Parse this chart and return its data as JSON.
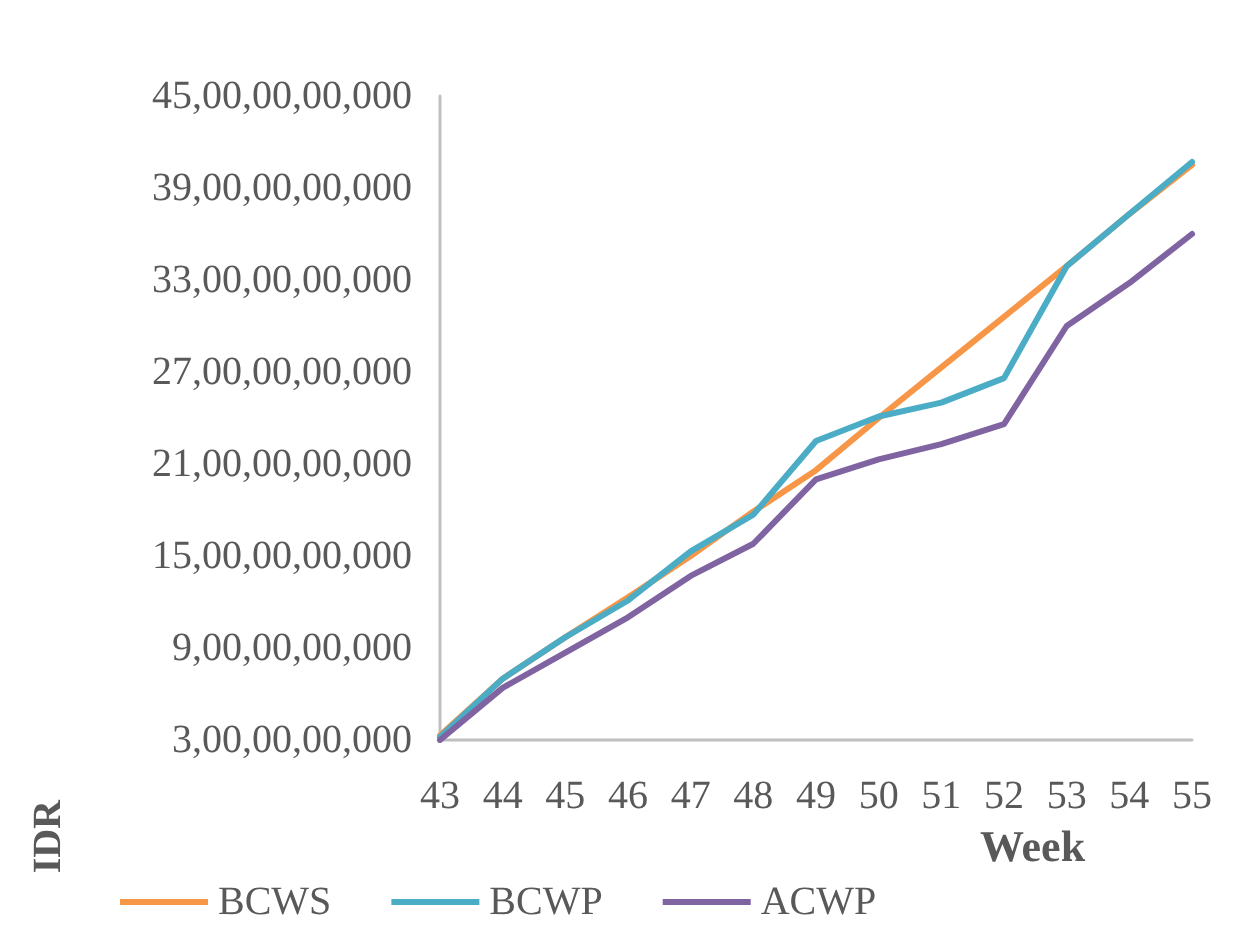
{
  "chart_data": {
    "type": "line",
    "xlabel": "Week",
    "ylabel": "IDR",
    "categories": [
      "43",
      "44",
      "45",
      "46",
      "47",
      "48",
      "49",
      "50",
      "51",
      "52",
      "53",
      "54",
      "55"
    ],
    "series": [
      {
        "name": "BCWS",
        "color": "#f79646",
        "values": [
          3300000000,
          7000000000,
          9700000000,
          12300000000,
          15000000000,
          17900000000,
          20600000000,
          24000000000,
          27300000000,
          30600000000,
          33900000000,
          37300000000,
          40500000000
        ]
      },
      {
        "name": "BCWP",
        "color": "#4bacc6",
        "values": [
          3200000000,
          7000000000,
          9700000000,
          12100000000,
          15300000000,
          17700000000,
          22500000000,
          24100000000,
          25000000000,
          26600000000,
          33900000000,
          37300000000,
          40700000000
        ]
      },
      {
        "name": "ACWP",
        "color": "#8064a2",
        "values": [
          3000000000,
          6400000000,
          8700000000,
          11000000000,
          13700000000,
          15800000000,
          20000000000,
          21300000000,
          22300000000,
          23600000000,
          30000000000,
          32800000000,
          36000000000
        ]
      }
    ],
    "ylim": [
      3000000000,
      45000000000
    ],
    "yticks": [
      {
        "value": 3000000000,
        "label": "3,00,00,00,000"
      },
      {
        "value": 9000000000,
        "label": "9,00,00,00,000"
      },
      {
        "value": 15000000000,
        "label": "15,00,00,00,000"
      },
      {
        "value": 21000000000,
        "label": "21,00,00,00,000"
      },
      {
        "value": 27000000000,
        "label": "27,00,00,00,000"
      },
      {
        "value": 33000000000,
        "label": "33,00,00,00,000"
      },
      {
        "value": 39000000000,
        "label": "39,00,00,00,000"
      },
      {
        "value": 45000000000,
        "label": "45,00,00,00,000"
      }
    ],
    "grid": false,
    "legend": "bottom",
    "marker": "none",
    "line_style": "solid"
  }
}
